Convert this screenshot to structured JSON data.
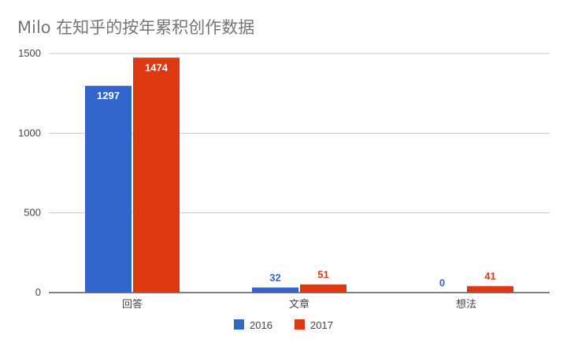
{
  "chart_data": {
    "type": "bar",
    "title": "Milo 在知乎的按年累积创作数据",
    "categories": [
      "回答",
      "文章",
      "想法"
    ],
    "series": [
      {
        "name": "2016",
        "values": [
          1297,
          32,
          0
        ],
        "color": "#3366cc"
      },
      {
        "name": "2017",
        "values": [
          1474,
          51,
          41
        ],
        "color": "#dc3912"
      }
    ],
    "y_ticks": [
      0,
      500,
      1000,
      1500
    ],
    "ylim": [
      0,
      1500
    ],
    "grid": true,
    "legend_position": "bottom",
    "data_labels": true
  }
}
